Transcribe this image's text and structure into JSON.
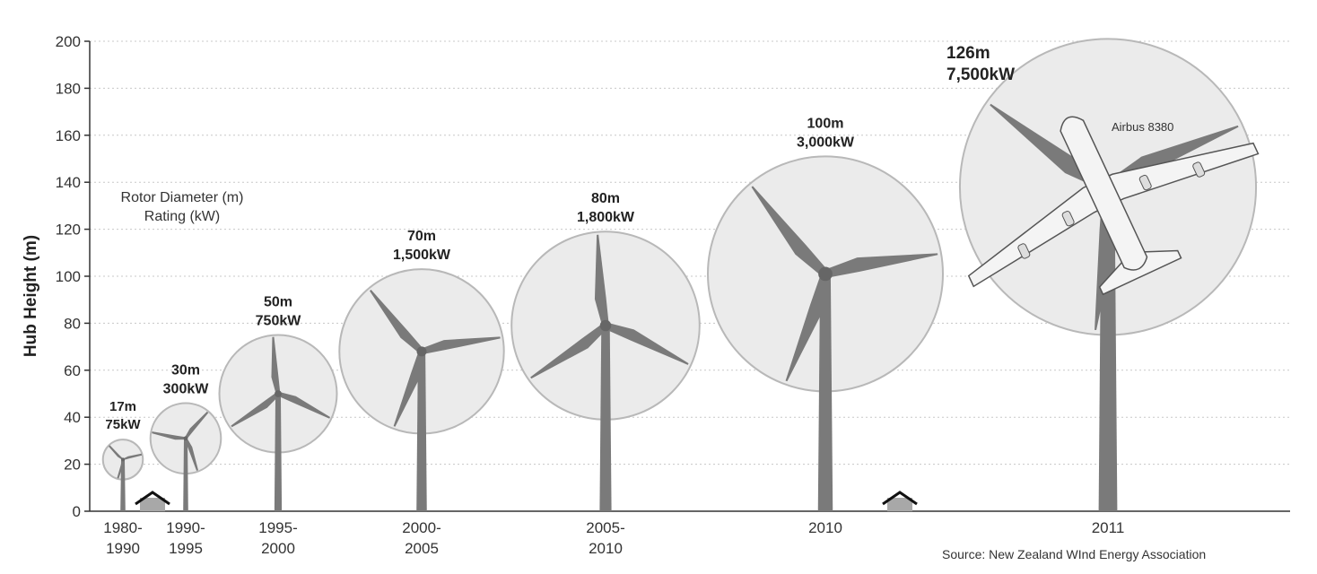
{
  "chart_data": {
    "type": "scatter",
    "ylabel": "Hub Height (m)",
    "ylim": [
      0,
      200
    ],
    "yticks": [
      0,
      20,
      40,
      60,
      80,
      100,
      120,
      140,
      160,
      180,
      200
    ],
    "grid": true,
    "legend_lines": [
      "Rotor Diameter (m)",
      "Rating (kW)"
    ],
    "turbines": [
      {
        "period": [
          "1980-",
          "1990"
        ],
        "hub_height": 22,
        "rotor_diameter": "17m",
        "rating": "75kW"
      },
      {
        "period": [
          "1990-",
          "1995"
        ],
        "hub_height": 31,
        "rotor_diameter": "30m",
        "rating": "300kW"
      },
      {
        "period": [
          "1995-",
          "2000"
        ],
        "hub_height": 50,
        "rotor_diameter": "50m",
        "rating": "750kW"
      },
      {
        "period": [
          "2000-",
          "2005"
        ],
        "hub_height": 68,
        "rotor_diameter": "70m",
        "rating": "1,500kW"
      },
      {
        "period": [
          "2005-",
          "2010"
        ],
        "hub_height": 79,
        "rotor_diameter": "80m",
        "rating": "1,800kW"
      },
      {
        "period": [
          "2010"
        ],
        "hub_height": 101,
        "rotor_diameter": "100m",
        "rating": "3,000kW"
      },
      {
        "period": [
          "2011"
        ],
        "hub_height": 138,
        "rotor_diameter": "126m",
        "rating": "7,500kW"
      }
    ],
    "annotations": {
      "airplane": "Airbus 8380",
      "source": "Source: New Zealand WInd Energy Association"
    }
  }
}
